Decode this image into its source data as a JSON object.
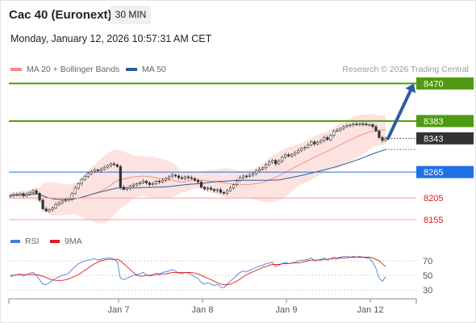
{
  "header": {
    "instrument": "Cac 40 (Euronext)",
    "timeframe_label": "30 MIN",
    "datetime": "Monday, January 12, 2026 10:57:31 AM CET"
  },
  "legend": {
    "ma20": {
      "label": "MA 20 + Bollinger Bands",
      "color": "#f08a84"
    },
    "ma50": {
      "label": "MA 50",
      "color": "#2f5c9e"
    },
    "credit": "Research © 2026 Trading Central"
  },
  "levels": [
    {
      "value": 8470,
      "label": "8470",
      "color": "#4f9a10",
      "style": "badge"
    },
    {
      "value": 8383,
      "label": "8383",
      "color": "#4f9a10",
      "style": "badge"
    },
    {
      "value": 8343,
      "label": "8343",
      "color": "#333333",
      "style": "price"
    },
    {
      "value": 8265,
      "label": "8265",
      "color": "#1f6fe5",
      "style": "badge"
    },
    {
      "value": 8205,
      "label": "8205",
      "color": "#e0191a",
      "style": "text"
    },
    {
      "value": 8155,
      "label": "8155",
      "color": "#e0191a",
      "style": "text"
    }
  ],
  "rsi_panel": {
    "legend": {
      "rsi_label": "RSI",
      "rsi_color": "#4a7fd8",
      "ma_label": "9MA",
      "ma_color": "#e0191a"
    },
    "ticks": [
      "70",
      "50",
      "30"
    ]
  },
  "x_axis": {
    "labels": [
      "Jan 7",
      "Jan 8",
      "Jan 9",
      "Jan 12"
    ]
  },
  "chart_data": {
    "type": "candlestick",
    "price_scale": [
      8140,
      8480
    ],
    "rsi_scale": [
      20,
      80
    ],
    "projection": {
      "from": 8343,
      "to": 8470
    },
    "closes": [
      8211,
      8213,
      8212,
      8215,
      8210,
      8214,
      8218,
      8222,
      8216,
      8200,
      8180,
      8175,
      8178,
      8182,
      8190,
      8194,
      8198,
      8200,
      8203,
      8215,
      8228,
      8238,
      8248,
      8255,
      8262,
      8266,
      8270,
      8268,
      8272,
      8276,
      8280,
      8284,
      8282,
      8278,
      8230,
      8225,
      8228,
      8232,
      8235,
      8238,
      8240,
      8244,
      8240,
      8236,
      8238,
      8244,
      8242,
      8246,
      8250,
      8254,
      8258,
      8256,
      8252,
      8250,
      8254,
      8252,
      8250,
      8246,
      8242,
      8230,
      8226,
      8228,
      8225,
      8222,
      8224,
      8218,
      8216,
      8222,
      8228,
      8236,
      8245,
      8252,
      8256,
      8255,
      8258,
      8262,
      8268,
      8272,
      8275,
      8282,
      8288,
      8292,
      8284,
      8290,
      8300,
      8305,
      8302,
      8306,
      8310,
      8315,
      8320,
      8322,
      8328,
      8335,
      8330,
      8334,
      8338,
      8345,
      8340,
      8350,
      8360,
      8362,
      8366,
      8370,
      8372,
      8374,
      8376,
      8375,
      8377,
      8376,
      8374,
      8375,
      8370,
      8360,
      8345,
      8338,
      8342
    ],
    "rsi": [
      48,
      50,
      51,
      52,
      49,
      51,
      53,
      54,
      50,
      44,
      38,
      37,
      40,
      43,
      46,
      48,
      50,
      51,
      53,
      58,
      62,
      66,
      68,
      70,
      71,
      72,
      73,
      71,
      72,
      73,
      74,
      74,
      72,
      69,
      46,
      44,
      46,
      48,
      50,
      51,
      52,
      54,
      51,
      49,
      50,
      53,
      52,
      54,
      55,
      56,
      58,
      56,
      53,
      52,
      54,
      53,
      51,
      48,
      46,
      40,
      38,
      40,
      38,
      36,
      38,
      34,
      33,
      38,
      42,
      46,
      50,
      54,
      56,
      55,
      57,
      59,
      61,
      63,
      64,
      66,
      67,
      68,
      62,
      64,
      66,
      68,
      66,
      67,
      68,
      70,
      71,
      71,
      72,
      74,
      70,
      71,
      72,
      74,
      71,
      73,
      75,
      74,
      75,
      76,
      76,
      75,
      76,
      75,
      76,
      75,
      74,
      73,
      68,
      60,
      46,
      42,
      48
    ],
    "rsi_ma": [
      50,
      50,
      51,
      51,
      51,
      51,
      51,
      51,
      51,
      50,
      49,
      47,
      45,
      44,
      43,
      43,
      43,
      44,
      45,
      47,
      49,
      51,
      54,
      57,
      60,
      63,
      66,
      68,
      70,
      71,
      72,
      72,
      72,
      72,
      70,
      66,
      62,
      58,
      54,
      50,
      49,
      49,
      50,
      50,
      51,
      51,
      51,
      52,
      52,
      53,
      54,
      54,
      54,
      54,
      54,
      54,
      54,
      53,
      52,
      50,
      48,
      46,
      44,
      42,
      40,
      38,
      37,
      37,
      38,
      40,
      42,
      45,
      48,
      51,
      53,
      55,
      57,
      59,
      61,
      62,
      64,
      65,
      65,
      65,
      66,
      66,
      66,
      67,
      67,
      67,
      68,
      69,
      70,
      71,
      71,
      71,
      71,
      72,
      72,
      73,
      73,
      73,
      74,
      74,
      74,
      75,
      75,
      75,
      75,
      75,
      75,
      75,
      74,
      72,
      70,
      66,
      62
    ]
  }
}
